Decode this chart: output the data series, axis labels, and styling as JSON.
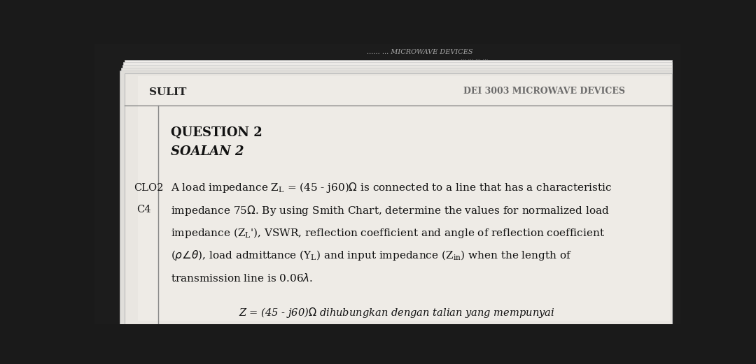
{
  "bg_color": "#1a1a1a",
  "paper_main_color": "#e8e5e0",
  "paper_shadow_color": "#c8c4be",
  "paper_edge_color": "#d5d1cc",
  "header_left": "SULIT",
  "header_right": "DEI 3003 MICROWAVE DEVICES",
  "top_faded_line1": "...... ... MICROWAVE DEVICES",
  "top_faded_line2": "... ... ... ... ...",
  "question_heading1": "QUESTION 2",
  "question_heading2": "SOALAN 2",
  "clo_label1": "CLO2",
  "clo_label2": "C4",
  "bottom_italic": "           Z = (45 - j60)Ω dihubungkan dengan talian yang mempunyai",
  "text_color": "#1a1a1a",
  "faded_color": "#888888"
}
